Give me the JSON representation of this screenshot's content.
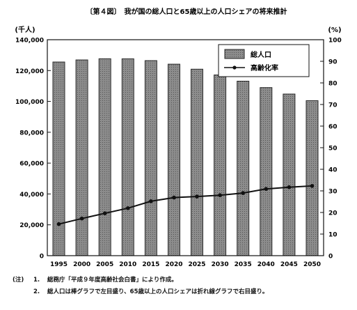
{
  "chart_data": {
    "type": "bar+line",
    "title": "〔第４図〕　我が国の総人口と65歳以上の人口シェアの将来推計",
    "ylabel_left": "(千人)",
    "ylabel_right": "(%)",
    "categories": [
      "1995",
      "2000",
      "2005",
      "2010",
      "2015",
      "2020",
      "2025",
      "2030",
      "2035",
      "2040",
      "2045",
      "2050"
    ],
    "ylim_left": [
      0,
      140000
    ],
    "yticks_left": [
      "0",
      "20,000",
      "40,000",
      "60,000",
      "80,000",
      "100,000",
      "120,000",
      "140,000"
    ],
    "ylim_right": [
      0,
      100
    ],
    "yticks_right": [
      "0",
      "10",
      "20",
      "30",
      "40",
      "50",
      "60",
      "70",
      "80",
      "90",
      "100"
    ],
    "grid": false,
    "legend_position": "top-right",
    "series": [
      {
        "name": "総人口",
        "type": "bar",
        "axis": "left",
        "values": [
          125570,
          126892,
          127684,
          127623,
          126444,
          124133,
          120913,
          117149,
          113114,
          108964,
          104758,
          100496
        ]
      },
      {
        "name": "高齢化率",
        "type": "line",
        "axis": "right",
        "values": [
          14.6,
          17.2,
          19.6,
          22.0,
          25.2,
          26.9,
          27.4,
          28.0,
          29.0,
          30.9,
          31.7,
          32.3
        ]
      }
    ],
    "colors": {
      "bar_fill": "#8a8a8a",
      "bar_stroke": "#2a2a2a",
      "line": "#111111"
    }
  },
  "notes": {
    "label": "(注)",
    "items": [
      {
        "num": "1.",
        "text": "総務庁「平成９年度高齢社会白書」により作成。"
      },
      {
        "num": "2.",
        "text": "総人口は棒グラフで左目盛り、65歳以上の人口シェアは折れ線グラフで右目盛り。"
      }
    ]
  }
}
